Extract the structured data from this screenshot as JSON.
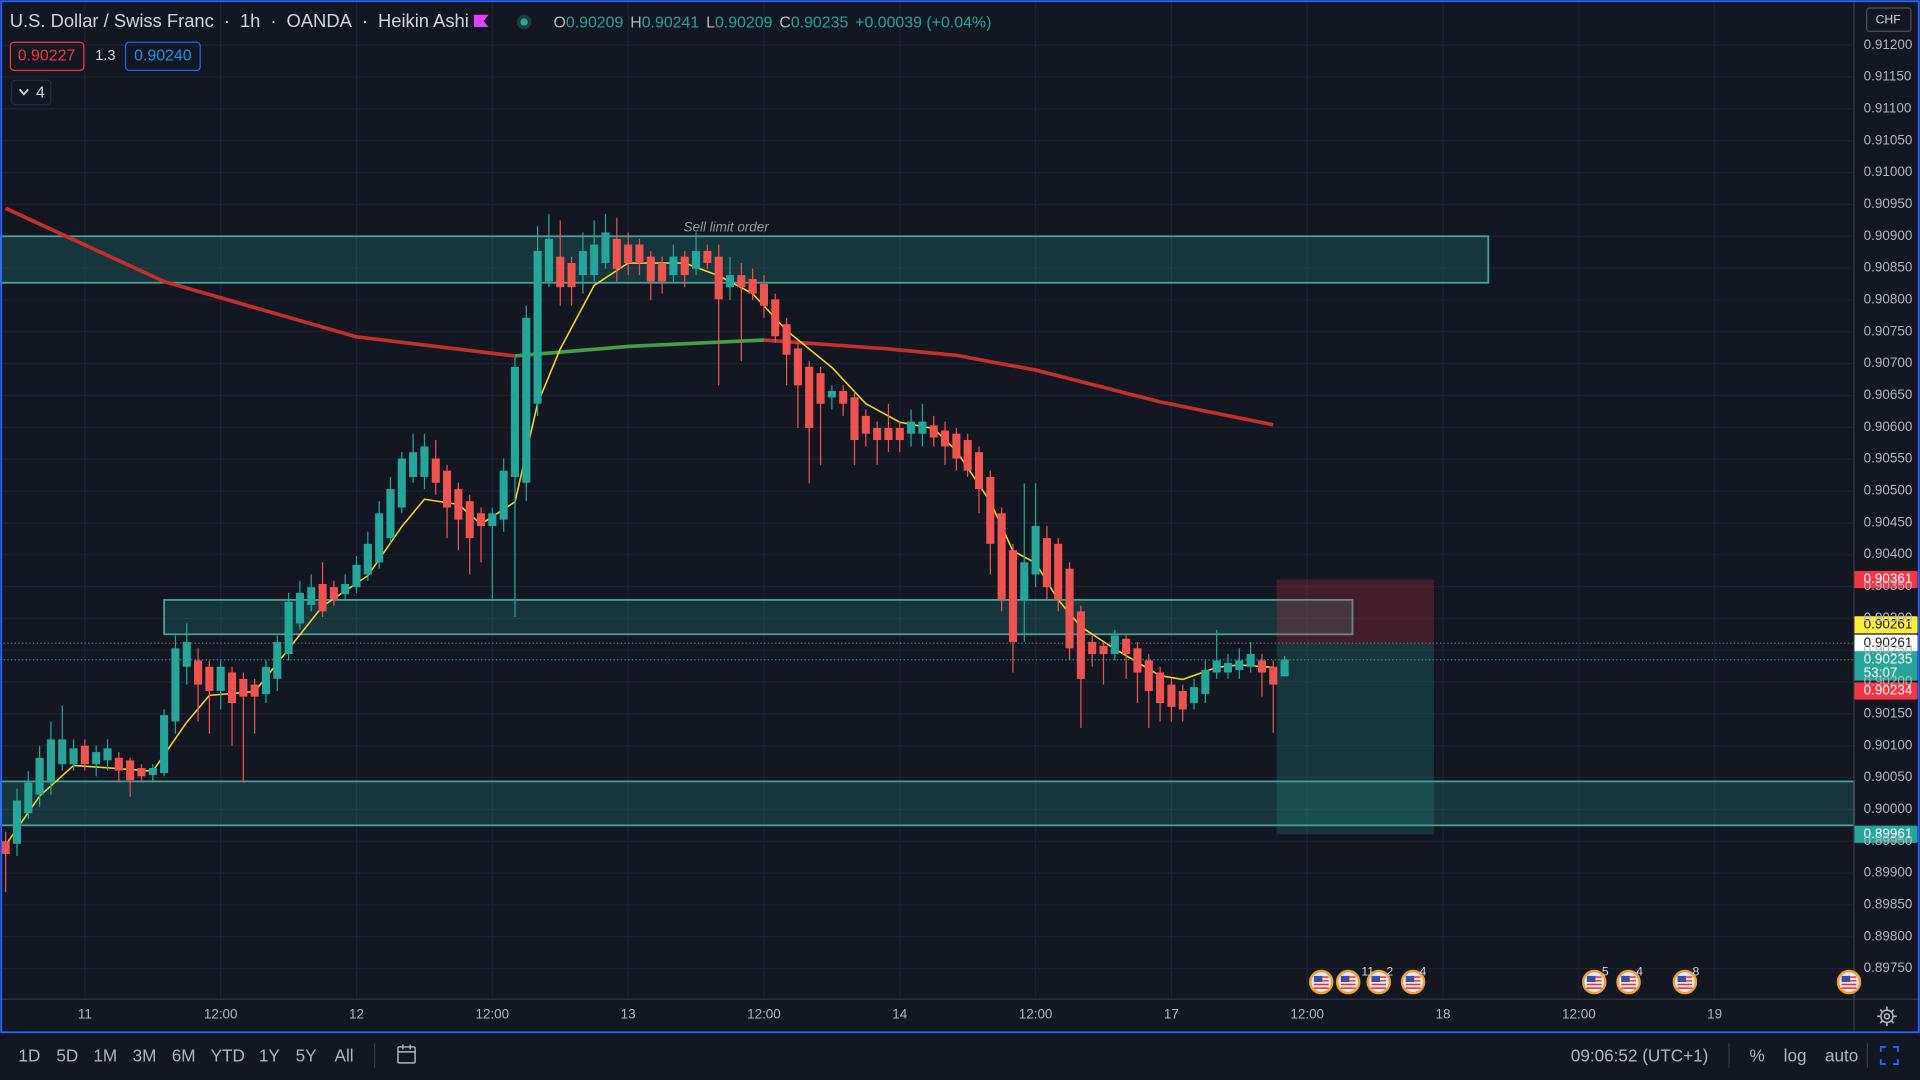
{
  "header": {
    "symbol": "U.S. Dollar / Swiss Franc",
    "separator": "·",
    "interval": "1h",
    "exchange": "OANDA",
    "style": "Heikin Ashi",
    "ohlc": [
      {
        "label": "O",
        "value": "0.90209"
      },
      {
        "label": "H",
        "value": "0.90241"
      },
      {
        "label": "L",
        "value": "0.90209"
      },
      {
        "label": "C",
        "value": "0.90235"
      }
    ],
    "change": "+0.00039 (+0.04%)"
  },
  "quote": {
    "bid": "0.90227",
    "spread": "1.3",
    "ask": "0.90240"
  },
  "indicators_count": "4",
  "chart_data": {
    "type": "candlestick",
    "currency": "CHF",
    "up_color": "#26a69a",
    "down_color": "#ef5350",
    "grid": true,
    "xlim": [
      -0.5,
      163.3
    ],
    "ylim": [
      0.89702,
      0.91271
    ],
    "xticks": [
      {
        "value": 7,
        "label": "11"
      },
      {
        "value": 19,
        "label": "12:00"
      },
      {
        "value": 31,
        "label": "12"
      },
      {
        "value": 43,
        "label": "12:00"
      },
      {
        "value": 55,
        "label": "13"
      },
      {
        "value": 67,
        "label": "12:00"
      },
      {
        "value": 79,
        "label": "14"
      },
      {
        "value": 91,
        "label": "12:00"
      },
      {
        "value": 103,
        "label": "17"
      },
      {
        "value": 115,
        "label": "12:00"
      },
      {
        "value": 127,
        "label": "18"
      },
      {
        "value": 139,
        "label": "12:00"
      },
      {
        "value": 151,
        "label": "19"
      }
    ],
    "yticks": [
      {
        "value": 0.912,
        "label": "0.91200"
      },
      {
        "value": 0.9115,
        "label": "0.91150"
      },
      {
        "value": 0.911,
        "label": "0.91100"
      },
      {
        "value": 0.9105,
        "label": "0.91050"
      },
      {
        "value": 0.91,
        "label": "0.91000"
      },
      {
        "value": 0.9095,
        "label": "0.90950"
      },
      {
        "value": 0.909,
        "label": "0.90900"
      },
      {
        "value": 0.9085,
        "label": "0.90850"
      },
      {
        "value": 0.908,
        "label": "0.90800"
      },
      {
        "value": 0.9075,
        "label": "0.90750"
      },
      {
        "value": 0.907,
        "label": "0.90700"
      },
      {
        "value": 0.9065,
        "label": "0.90650"
      },
      {
        "value": 0.906,
        "label": "0.90600"
      },
      {
        "value": 0.9055,
        "label": "0.90550"
      },
      {
        "value": 0.905,
        "label": "0.90500"
      },
      {
        "value": 0.9045,
        "label": "0.90450"
      },
      {
        "value": 0.904,
        "label": "0.90400"
      },
      {
        "value": 0.9035,
        "label": "0.90350"
      },
      {
        "value": 0.903,
        "label": "0.90300"
      },
      {
        "value": 0.9025,
        "label": "0.90250"
      },
      {
        "value": 0.902,
        "label": "0.90200"
      },
      {
        "value": 0.9015,
        "label": "0.90150"
      },
      {
        "value": 0.901,
        "label": "0.90100"
      },
      {
        "value": 0.9005,
        "label": "0.90050"
      },
      {
        "value": 0.9,
        "label": "0.90000"
      },
      {
        "value": 0.8995,
        "label": "0.89950"
      },
      {
        "value": 0.899,
        "label": "0.89900"
      },
      {
        "value": 0.8985,
        "label": "0.89850"
      },
      {
        "value": 0.898,
        "label": "0.89800"
      },
      {
        "value": 0.8975,
        "label": "0.89750"
      }
    ],
    "candles": [
      [
        0.8995,
        0.89965,
        0.8987,
        0.8993
      ],
      [
        0.89946,
        0.90033,
        0.89927,
        0.90014
      ],
      [
        0.89994,
        0.9006,
        0.89985,
        0.90042
      ],
      [
        0.90023,
        0.901,
        0.90004,
        0.90081
      ],
      [
        0.90042,
        0.90138,
        0.90023,
        0.9011
      ],
      [
        0.90071,
        0.90163,
        0.90061,
        0.9011
      ],
      [
        0.90071,
        0.9011,
        0.90061,
        0.90096
      ],
      [
        0.901,
        0.9011,
        0.90061,
        0.90071
      ],
      [
        0.90071,
        0.901,
        0.90052,
        0.9009
      ],
      [
        0.90077,
        0.9011,
        0.90061,
        0.90096
      ],
      [
        0.90081,
        0.9009,
        0.90042,
        0.90061
      ],
      [
        0.90077,
        0.90081,
        0.9002,
        0.90046
      ],
      [
        0.90065,
        0.90071,
        0.90042,
        0.90052
      ],
      [
        0.90054,
        0.90071,
        0.90042,
        0.90065
      ],
      [
        0.90057,
        0.90157,
        0.90052,
        0.90148
      ],
      [
        0.90138,
        0.90273,
        0.90119,
        0.90253
      ],
      [
        0.90224,
        0.90292,
        0.90196,
        0.90263
      ],
      [
        0.90234,
        0.90253,
        0.90138,
        0.90196
      ],
      [
        0.90224,
        0.90234,
        0.90119,
        0.90186
      ],
      [
        0.90186,
        0.90234,
        0.90157,
        0.90224
      ],
      [
        0.90215,
        0.90224,
        0.901,
        0.90167
      ],
      [
        0.90205,
        0.90215,
        0.90042,
        0.90177
      ],
      [
        0.90196,
        0.90205,
        0.90119,
        0.90177
      ],
      [
        0.90181,
        0.90234,
        0.90167,
        0.90224
      ],
      [
        0.90205,
        0.90273,
        0.90186,
        0.90263
      ],
      [
        0.90244,
        0.9034,
        0.90234,
        0.90326
      ],
      [
        0.90292,
        0.90359,
        0.90282,
        0.9034
      ],
      [
        0.90321,
        0.90369,
        0.90311,
        0.90349
      ],
      [
        0.90354,
        0.90388,
        0.90302,
        0.90311
      ],
      [
        0.90349,
        0.90359,
        0.9032,
        0.9033
      ],
      [
        0.90338,
        0.90369,
        0.9033,
        0.90354
      ],
      [
        0.90349,
        0.90398,
        0.9034,
        0.90384
      ],
      [
        0.90369,
        0.90436,
        0.90359,
        0.90417
      ],
      [
        0.90388,
        0.90484,
        0.90378,
        0.90465
      ],
      [
        0.90426,
        0.90522,
        0.90417,
        0.90503
      ],
      [
        0.90474,
        0.90561,
        0.90465,
        0.90551
      ],
      [
        0.90522,
        0.9059,
        0.90513,
        0.90561
      ],
      [
        0.90522,
        0.9059,
        0.90503,
        0.9057
      ],
      [
        0.90551,
        0.9058,
        0.90494,
        0.90513
      ],
      [
        0.90532,
        0.90541,
        0.90426,
        0.90474
      ],
      [
        0.90503,
        0.90513,
        0.90407,
        0.90455
      ],
      [
        0.90484,
        0.90494,
        0.90369,
        0.90426
      ],
      [
        0.90465,
        0.90474,
        0.90388,
        0.90445
      ],
      [
        0.90445,
        0.90474,
        0.9033,
        0.90465
      ],
      [
        0.90455,
        0.90551,
        0.90436,
        0.90532
      ],
      [
        0.90522,
        0.9071,
        0.90302,
        0.90695
      ],
      [
        0.90513,
        0.90791,
        0.90484,
        0.90772
      ],
      [
        0.90637,
        0.90916,
        0.90618,
        0.90877
      ],
      [
        0.90829,
        0.90935,
        0.9082,
        0.90896
      ],
      [
        0.90868,
        0.90925,
        0.90791,
        0.9082
      ],
      [
        0.90858,
        0.90868,
        0.90791,
        0.9082
      ],
      [
        0.90839,
        0.90906,
        0.9081,
        0.90877
      ],
      [
        0.90839,
        0.90925,
        0.90829,
        0.90887
      ],
      [
        0.90858,
        0.90935,
        0.90849,
        0.90906
      ],
      [
        0.90896,
        0.90929,
        0.90829,
        0.90849
      ],
      [
        0.90887,
        0.90906,
        0.90839,
        0.90858
      ],
      [
        0.90887,
        0.90896,
        0.90839,
        0.90858
      ],
      [
        0.90868,
        0.90877,
        0.908,
        0.90829
      ],
      [
        0.90858,
        0.90868,
        0.9081,
        0.90829
      ],
      [
        0.90839,
        0.90887,
        0.90829,
        0.90868
      ],
      [
        0.90868,
        0.90877,
        0.9082,
        0.90839
      ],
      [
        0.90849,
        0.90906,
        0.90839,
        0.90877
      ],
      [
        0.90877,
        0.90887,
        0.90849,
        0.90858
      ],
      [
        0.90868,
        0.90887,
        0.90666,
        0.90801
      ],
      [
        0.9082,
        0.90868,
        0.908,
        0.90839
      ],
      [
        0.90839,
        0.90858,
        0.90704,
        0.9082
      ],
      [
        0.90833,
        0.90849,
        0.908,
        0.9081
      ],
      [
        0.90825,
        0.90839,
        0.90772,
        0.90791
      ],
      [
        0.90801,
        0.9081,
        0.90733,
        0.90743
      ],
      [
        0.90762,
        0.90772,
        0.90666,
        0.90714
      ],
      [
        0.90724,
        0.90733,
        0.90599,
        0.90666
      ],
      [
        0.90695,
        0.90704,
        0.90512,
        0.90599
      ],
      [
        0.90685,
        0.90695,
        0.90541,
        0.90637
      ],
      [
        0.90647,
        0.90666,
        0.90628,
        0.90657
      ],
      [
        0.90657,
        0.90666,
        0.90618,
        0.90637
      ],
      [
        0.90647,
        0.90657,
        0.90541,
        0.9058
      ],
      [
        0.90618,
        0.90628,
        0.9057,
        0.9059
      ],
      [
        0.90599,
        0.90609,
        0.90541,
        0.9058
      ],
      [
        0.90599,
        0.90637,
        0.90561,
        0.9058
      ],
      [
        0.90599,
        0.90609,
        0.90561,
        0.9058
      ],
      [
        0.9059,
        0.90628,
        0.9057,
        0.90609
      ],
      [
        0.9059,
        0.90637,
        0.9057,
        0.90609
      ],
      [
        0.90603,
        0.90618,
        0.9057,
        0.90584
      ],
      [
        0.90595,
        0.90609,
        0.90541,
        0.9057
      ],
      [
        0.9059,
        0.90599,
        0.90532,
        0.90551
      ],
      [
        0.9058,
        0.9059,
        0.90522,
        0.90532
      ],
      [
        0.90561,
        0.9057,
        0.90465,
        0.90503
      ],
      [
        0.90522,
        0.90532,
        0.90369,
        0.90417
      ],
      [
        0.90465,
        0.90474,
        0.90311,
        0.9033
      ],
      [
        0.90407,
        0.90417,
        0.90215,
        0.90263
      ],
      [
        0.9033,
        0.90512,
        0.90263,
        0.90388
      ],
      [
        0.90369,
        0.90512,
        0.90349,
        0.90445
      ],
      [
        0.90426,
        0.90445,
        0.9033,
        0.90349
      ],
      [
        0.90417,
        0.90426,
        0.90311,
        0.9033
      ],
      [
        0.90378,
        0.90388,
        0.90234,
        0.90253
      ],
      [
        0.90311,
        0.9032,
        0.90128,
        0.90205
      ],
      [
        0.90263,
        0.90273,
        0.90224,
        0.90244
      ],
      [
        0.90257,
        0.90263,
        0.90196,
        0.90244
      ],
      [
        0.90244,
        0.90282,
        0.90234,
        0.90273
      ],
      [
        0.90268,
        0.90273,
        0.90205,
        0.90244
      ],
      [
        0.90253,
        0.90263,
        0.90167,
        0.90215
      ],
      [
        0.90234,
        0.90244,
        0.90128,
        0.90186
      ],
      [
        0.90215,
        0.90224,
        0.90138,
        0.90167
      ],
      [
        0.90196,
        0.90205,
        0.90138,
        0.90161
      ],
      [
        0.90186,
        0.90196,
        0.90138,
        0.90157
      ],
      [
        0.90167,
        0.90205,
        0.90157,
        0.90192
      ],
      [
        0.90181,
        0.90234,
        0.90167,
        0.90219
      ],
      [
        0.90215,
        0.90282,
        0.90205,
        0.90234
      ],
      [
        0.90215,
        0.90244,
        0.90205,
        0.9023
      ],
      [
        0.90219,
        0.90253,
        0.90205,
        0.90234
      ],
      [
        0.90224,
        0.90263,
        0.90215,
        0.90244
      ],
      [
        0.90234,
        0.90244,
        0.90177,
        0.90215
      ],
      [
        0.90224,
        0.90234,
        0.9012,
        0.90196
      ],
      [
        0.90209,
        0.90241,
        0.90209,
        0.90235
      ]
    ],
    "lines": [
      {
        "color": "#c2302d",
        "width": 3,
        "x": [
          0,
          14,
          31,
          45,
          55,
          67,
          78,
          84,
          91,
          102,
          112
        ],
        "values": [
          0.90944,
          0.90829,
          0.90742,
          0.90712,
          null,
          0.90737,
          0.90723,
          0.90713,
          0.9069,
          0.9064,
          0.90604
        ]
      },
      {
        "color": "#43a047",
        "width": 3,
        "x": [
          45,
          55,
          67
        ],
        "values": [
          0.90712,
          0.90727,
          0.90737
        ]
      },
      {
        "color": "#f2d22e",
        "width": 1.3,
        "x": [
          0,
          3,
          6,
          10,
          13,
          16,
          18,
          22,
          25,
          28,
          32,
          35,
          37,
          40,
          42,
          45,
          47,
          49,
          52,
          55,
          60,
          63,
          66,
          69,
          73,
          76,
          79,
          82,
          84,
          87,
          89,
          91,
          93,
          95,
          98,
          102,
          104,
          107,
          109,
          112
        ],
        "values": [
          0.89944,
          0.90021,
          0.90069,
          0.90064,
          0.9006,
          0.90137,
          0.90179,
          0.90185,
          0.90252,
          0.90319,
          0.90367,
          0.90444,
          0.90487,
          0.90479,
          0.90448,
          0.90483,
          0.90637,
          0.90723,
          0.90823,
          0.90858,
          0.90858,
          0.90838,
          0.9081,
          0.90752,
          0.90694,
          0.90637,
          0.90608,
          0.90598,
          0.90563,
          0.90483,
          0.90406,
          0.90387,
          0.90329,
          0.90287,
          0.90252,
          0.9021,
          0.90204,
          0.90223,
          0.90227,
          0.90223
        ]
      }
    ],
    "zones": [
      {
        "x": [
          -0.5,
          131
        ],
        "y": [
          0.90827,
          0.909
        ]
      },
      {
        "x": [
          14,
          119
        ],
        "y": [
          0.90275,
          0.90329
        ]
      },
      {
        "x": [
          -0.5,
          163.3
        ],
        "y": [
          0.89975,
          0.90044
        ]
      }
    ],
    "position": {
      "x": [
        112.3,
        126.2
      ],
      "stop": 0.90361,
      "entry": 0.90261,
      "target": 0.89961
    },
    "annotation": "Sell limit order",
    "price_labels": [
      {
        "value": 0.90361,
        "label": "0.90361",
        "bg": "#f23645",
        "fg": "#ffffff"
      },
      {
        "value": 0.90261,
        "label": "0.90261",
        "bg": "#ffeb3b",
        "fg": "#131722"
      },
      {
        "value": 0.90261,
        "label": "0.90261",
        "bg": "#ffffff",
        "fg": "#131722"
      },
      {
        "value": 0.90235,
        "label": "0.90235",
        "bg": "#26a69a",
        "fg": "#ffffff"
      },
      {
        "value": 0.90234,
        "label": "0.90234",
        "bg": "#f23645",
        "fg": "#ffffff"
      },
      {
        "value": 0.89961,
        "label": "0.89961",
        "bg": "#26a69a",
        "fg": "#ffffff"
      }
    ],
    "countdown": "53:07"
  },
  "events": [
    "11",
    "2",
    "4",
    "5",
    "4",
    "8"
  ],
  "toolbar": {
    "ranges": [
      "1D",
      "5D",
      "1M",
      "3M",
      "6M",
      "YTD",
      "1Y",
      "5Y",
      "All"
    ],
    "clock": "09:06:52 (UTC+1)",
    "options": [
      "%",
      "log",
      "auto"
    ]
  }
}
